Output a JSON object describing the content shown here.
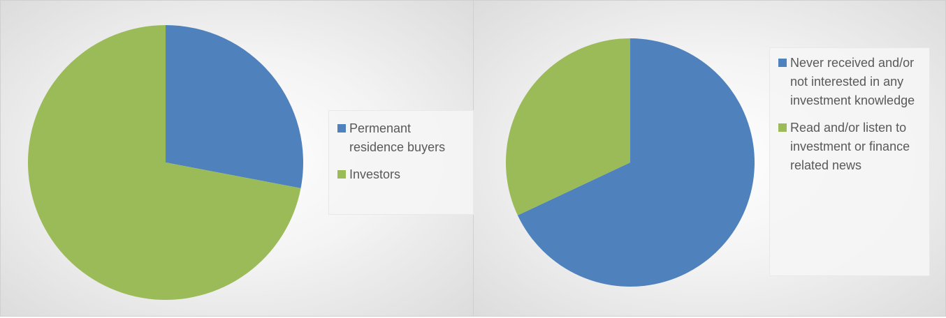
{
  "charts": [
    {
      "type": "pie",
      "categories": [
        "Permenant residence buyers",
        "Investors"
      ],
      "values": [
        28,
        72
      ],
      "colors": [
        "#4f81bd",
        "#9bbb59"
      ]
    },
    {
      "type": "pie",
      "categories": [
        "Never received and/or not interested in any investment knowledge",
        "Read and/or listen to investment or finance related news"
      ],
      "values": [
        68,
        32
      ],
      "colors": [
        "#4f81bd",
        "#9bbb59"
      ]
    }
  ]
}
